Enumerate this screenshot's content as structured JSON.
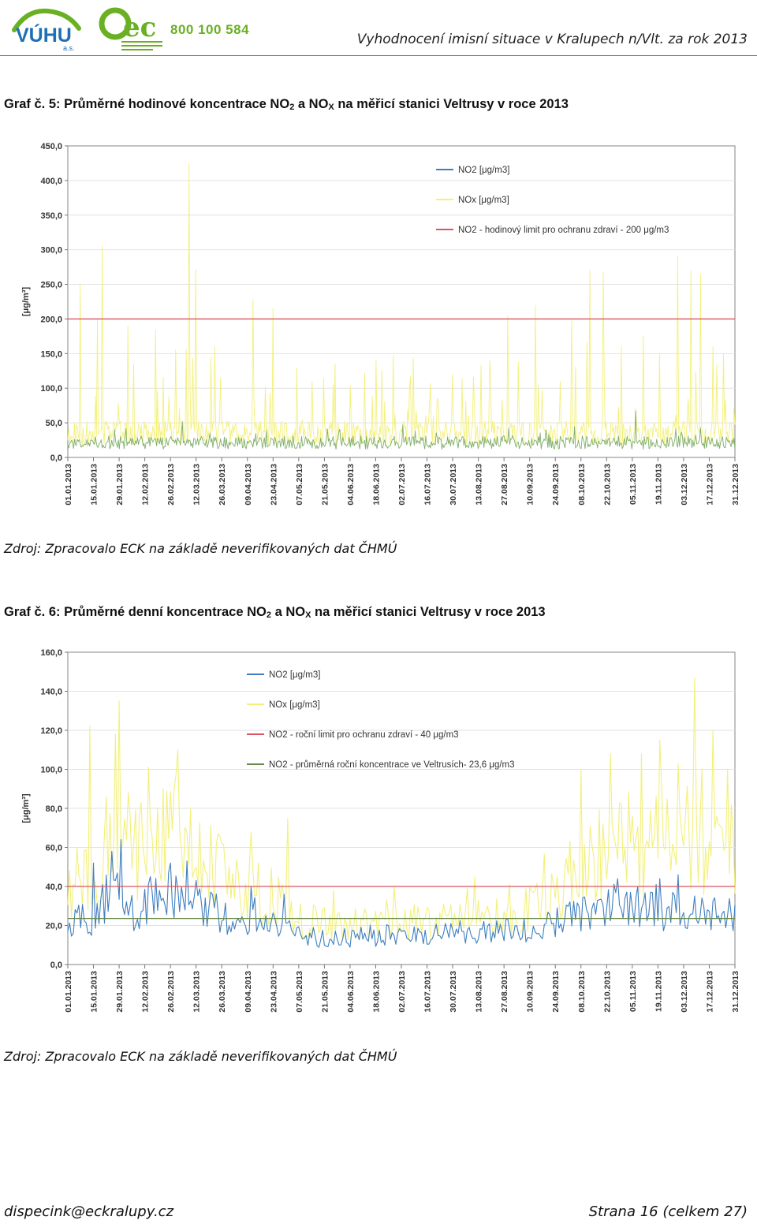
{
  "header": {
    "logo_left_text": "VÚHU",
    "logo_left_sub": "a.s.",
    "logo_mid_text": "ec",
    "phone": "800 100 584",
    "doc_title": "Vyhodnocení imisní situace v Kralupech n/Vlt. za rok 2013",
    "brand_green": "#6ab023",
    "brand_blue": "#1e6fb5"
  },
  "chart1": {
    "caption_prefix": "Graf č. 5: Průměrné hodinové koncentrace NO",
    "caption_sub1": "2",
    "caption_mid": " a NO",
    "caption_sub2": "X",
    "caption_suffix": " na měřicí stanici Veltrusy v roce 2013",
    "source": "Zdroj: Zpracovalo ECK na základě neverifikovaných dat ČHMÚ"
  },
  "chart2": {
    "caption_prefix": "Graf č. 6: Průměrné denní koncentrace NO",
    "caption_sub1": "2",
    "caption_mid": " a NO",
    "caption_sub2": "X",
    "caption_suffix": " na měřicí stanici Veltrusy v roce 2013",
    "source": "Zdroj: Zpracovalo ECK na základě neverifikovaných dat ČHMÚ"
  },
  "chart_data": [
    {
      "type": "line",
      "ylabel": "[μg/m³]",
      "ylim": [
        0,
        450
      ],
      "yticks": [
        "0,0",
        "50,0",
        "100,0",
        "150,0",
        "200,0",
        "250,0",
        "300,0",
        "350,0",
        "400,0",
        "450,0"
      ],
      "x_ticks": [
        "01.01.2013",
        "15.01.2013",
        "29.01.2013",
        "12.02.2013",
        "26.02.2013",
        "12.03.2013",
        "26.03.2013",
        "09.04.2013",
        "23.04.2013",
        "07.05.2013",
        "21.05.2013",
        "04.06.2013",
        "18.06.2013",
        "02.07.2013",
        "16.07.2013",
        "30.07.2013",
        "13.08.2013",
        "27.08.2013",
        "10.09.2013",
        "24.09.2013",
        "08.10.2013",
        "22.10.2013",
        "05.11.2013",
        "19.11.2013",
        "03.12.2013",
        "17.12.2013",
        "31.12.2013"
      ],
      "grid": true,
      "legend_position": "top-right",
      "series": [
        {
          "name": "NO2 [μg/m3]",
          "color": "#3f7fbf",
          "kind": "data",
          "typical_level": 20
        },
        {
          "name": "NOx [μg/m3]",
          "color": "#f3f07a",
          "kind": "data",
          "typical_level": 30,
          "peaks": [
            {
              "day": 7,
              "value": 250
            },
            {
              "day": 16,
              "value": 200
            },
            {
              "day": 19,
              "value": 305
            },
            {
              "day": 33,
              "value": 190
            },
            {
              "day": 36,
              "value": 135
            },
            {
              "day": 48,
              "value": 185
            },
            {
              "day": 59,
              "value": 155
            },
            {
              "day": 66,
              "value": 425
            },
            {
              "day": 70,
              "value": 272
            },
            {
              "day": 80,
              "value": 160
            },
            {
              "day": 101,
              "value": 228
            },
            {
              "day": 112,
              "value": 215
            },
            {
              "day": 145,
              "value": 105
            },
            {
              "day": 168,
              "value": 140
            },
            {
              "day": 210,
              "value": 120
            },
            {
              "day": 222,
              "value": 78
            },
            {
              "day": 240,
              "value": 205
            },
            {
              "day": 255,
              "value": 220
            },
            {
              "day": 275,
              "value": 200
            },
            {
              "day": 285,
              "value": 270
            },
            {
              "day": 292,
              "value": 268
            },
            {
              "day": 302,
              "value": 160
            },
            {
              "day": 314,
              "value": 175
            },
            {
              "day": 323,
              "value": 150
            },
            {
              "day": 333,
              "value": 290
            },
            {
              "day": 340,
              "value": 270
            },
            {
              "day": 345,
              "value": 265
            },
            {
              "day": 352,
              "value": 160
            },
            {
              "day": 358,
              "value": 150
            }
          ]
        },
        {
          "name": "NO2 - hodinový limit pro ochranu zdraví - 200 μg/m3",
          "color": "#d9555f",
          "kind": "constant",
          "value": 200
        }
      ]
    },
    {
      "type": "line",
      "ylabel": "[μg/m³]",
      "ylim": [
        0,
        160
      ],
      "yticks": [
        "0,0",
        "20,0",
        "40,0",
        "60,0",
        "80,0",
        "100,0",
        "120,0",
        "140,0",
        "160,0"
      ],
      "x_ticks": [
        "01.01.2013",
        "15.01.2013",
        "29.01.2013",
        "12.02.2013",
        "26.02.2013",
        "12.03.2013",
        "26.03.2013",
        "09.04.2013",
        "23.04.2013",
        "07.05.2013",
        "21.05.2013",
        "04.06.2013",
        "18.06.2013",
        "02.07.2013",
        "16.07.2013",
        "30.07.2013",
        "13.08.2013",
        "27.08.2013",
        "10.09.2013",
        "24.09.2013",
        "08.10.2013",
        "22.10.2013",
        "05.11.2013",
        "19.11.2013",
        "03.12.2013",
        "17.12.2013",
        "31.12.2013"
      ],
      "grid": true,
      "legend_position": "top-center",
      "series": [
        {
          "name": "NO2 [μg/m3]",
          "color": "#3f7fbf",
          "kind": "data",
          "profile": [
            [
              0,
              22
            ],
            [
              14,
              25
            ],
            [
              28,
              45
            ],
            [
              35,
              28
            ],
            [
              50,
              35
            ],
            [
              62,
              42
            ],
            [
              75,
              30
            ],
            [
              90,
              24
            ],
            [
              110,
              22
            ],
            [
              130,
              15
            ],
            [
              150,
              14
            ],
            [
              180,
              16
            ],
            [
              210,
              17
            ],
            [
              240,
              18
            ],
            [
              260,
              20
            ],
            [
              275,
              26
            ],
            [
              290,
              28
            ],
            [
              300,
              32
            ],
            [
              315,
              30
            ],
            [
              330,
              28
            ],
            [
              345,
              30
            ],
            [
              364,
              25
            ]
          ],
          "peaks": [
            {
              "day": 14,
              "value": 52
            },
            {
              "day": 24,
              "value": 58
            },
            {
              "day": 29,
              "value": 64
            },
            {
              "day": 45,
              "value": 45
            },
            {
              "day": 56,
              "value": 52
            },
            {
              "day": 65,
              "value": 53
            },
            {
              "day": 100,
              "value": 40
            },
            {
              "day": 118,
              "value": 36
            },
            {
              "day": 300,
              "value": 44
            },
            {
              "day": 323,
              "value": 44
            },
            {
              "day": 333,
              "value": 46
            }
          ]
        },
        {
          "name": "NOx [μg/m3]",
          "color": "#f3f07a",
          "kind": "data",
          "profile": [
            [
              0,
              40
            ],
            [
              14,
              45
            ],
            [
              28,
              75
            ],
            [
              35,
              55
            ],
            [
              50,
              60
            ],
            [
              62,
              70
            ],
            [
              75,
              55
            ],
            [
              90,
              40
            ],
            [
              110,
              35
            ],
            [
              130,
              22
            ],
            [
              150,
              20
            ],
            [
              180,
              22
            ],
            [
              210,
              22
            ],
            [
              240,
              24
            ],
            [
              260,
              30
            ],
            [
              275,
              45
            ],
            [
              290,
              55
            ],
            [
              300,
              65
            ],
            [
              315,
              60
            ],
            [
              330,
              70
            ],
            [
              345,
              65
            ],
            [
              364,
              55
            ]
          ],
          "peaks": [
            {
              "day": 12,
              "value": 122
            },
            {
              "day": 26,
              "value": 118
            },
            {
              "day": 28,
              "value": 135
            },
            {
              "day": 33,
              "value": 88
            },
            {
              "day": 40,
              "value": 83
            },
            {
              "day": 52,
              "value": 90
            },
            {
              "day": 60,
              "value": 110
            },
            {
              "day": 67,
              "value": 80
            },
            {
              "day": 100,
              "value": 68
            },
            {
              "day": 120,
              "value": 75
            },
            {
              "day": 145,
              "value": 38
            },
            {
              "day": 280,
              "value": 100
            },
            {
              "day": 296,
              "value": 108
            },
            {
              "day": 313,
              "value": 108
            },
            {
              "day": 323,
              "value": 115
            },
            {
              "day": 333,
              "value": 103
            },
            {
              "day": 342,
              "value": 147
            },
            {
              "day": 352,
              "value": 120
            },
            {
              "day": 360,
              "value": 100
            }
          ]
        },
        {
          "name": "NO2 - roční limit pro ochranu zdraví - 40 μg/m3",
          "color": "#d9555f",
          "kind": "constant",
          "value": 40
        },
        {
          "name": "NO2 - průměrná roční koncentrace ve Veltrusích- 23,6 μg/m3",
          "color": "#6a8a4a",
          "kind": "constant",
          "value": 23.6
        }
      ]
    }
  ],
  "footer": {
    "email": "dispecink@eckralupy.cz",
    "page": "Strana 16 (celkem 27)"
  }
}
